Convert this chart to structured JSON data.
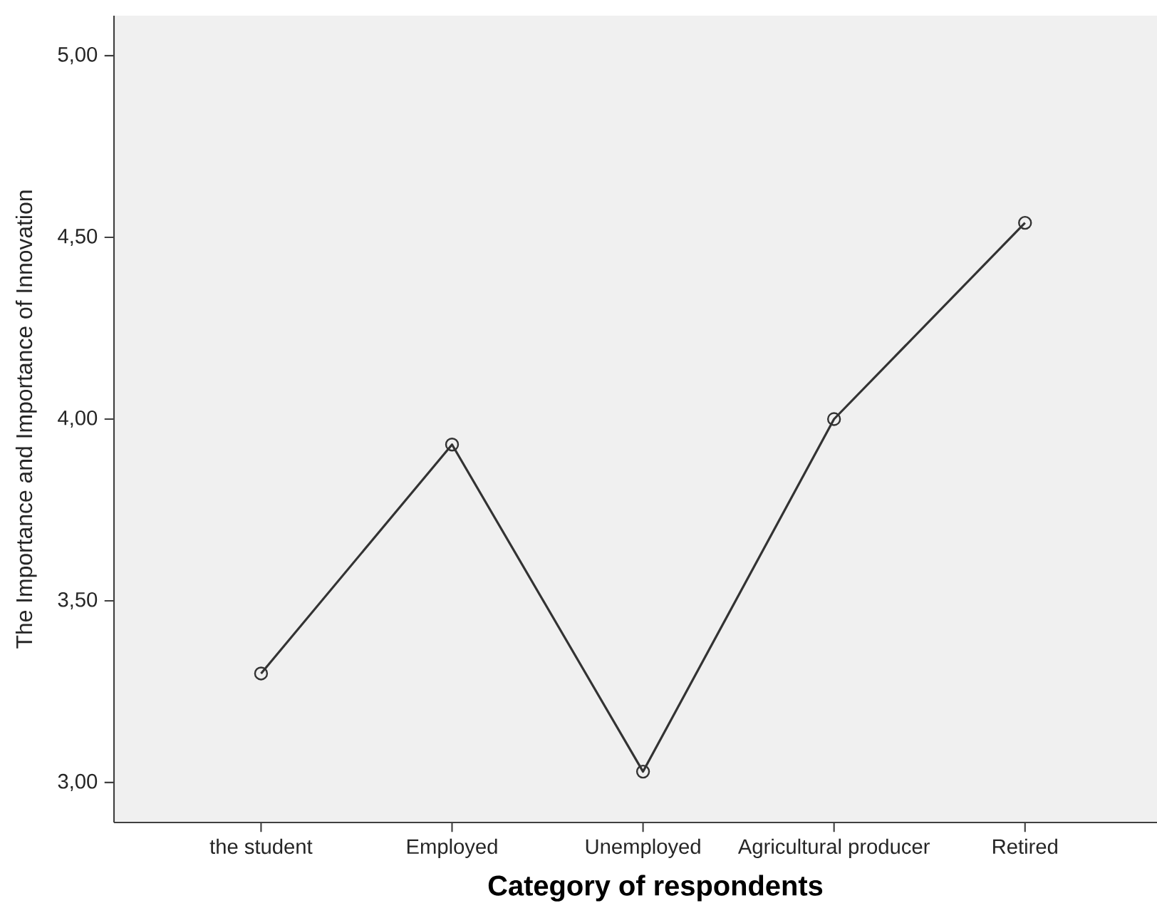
{
  "chart_data": {
    "type": "line",
    "xlabel": "Category of respondents",
    "ylabel": "The Importance and Importance of Innovation",
    "categories": [
      "the student",
      "Employed",
      "Unemployed",
      "Agricultural producer",
      "Retired"
    ],
    "series": [
      {
        "color": "#333333",
        "values": [
          3.3,
          3.93,
          3.03,
          4.0,
          4.54
        ]
      }
    ],
    "marker": "circle",
    "line_style": "solid",
    "ylim": [
      2.89,
      5.11
    ],
    "yticks": [
      {
        "value": 3,
        "label": "3,00"
      },
      {
        "value": 3.5,
        "label": "3,50"
      },
      {
        "value": 4,
        "label": "4,00"
      },
      {
        "value": 4.5,
        "label": "4,50"
      },
      {
        "value": 5,
        "label": "5,00"
      }
    ]
  }
}
